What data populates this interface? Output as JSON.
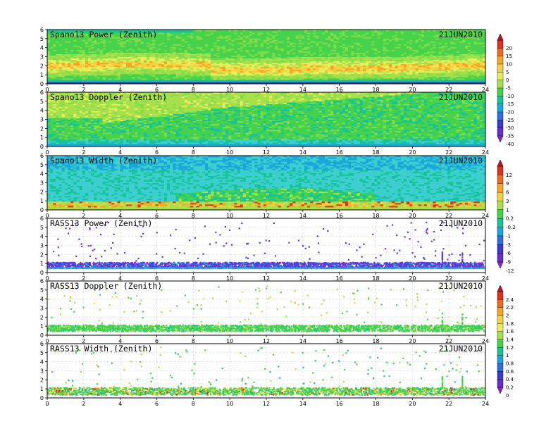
{
  "chart_data": [
    {
      "type": "heatmap",
      "title": "Spano13 Power (Zenith)",
      "date": "21JUN2010",
      "xlim": [
        0,
        24
      ],
      "ylim": [
        0,
        6
      ],
      "x_ticks": [
        "0",
        "2",
        "4",
        "6",
        "8",
        "10",
        "12",
        "14",
        "16",
        "18",
        "20",
        "22",
        "24"
      ],
      "y_ticks": [
        "0",
        "1",
        "2",
        "3",
        "4",
        "5",
        "6"
      ],
      "colorbar_group": 0,
      "pattern": "power",
      "profile": [
        {
          "x": 0,
          "level": 20,
          "mid": 2.0,
          "top": 5.6
        },
        {
          "x": 4,
          "level": 15,
          "mid": 2.0,
          "top": 5.7
        },
        {
          "x": 8,
          "level": 10,
          "mid": 1.8,
          "top": 5.8
        },
        {
          "x": 12,
          "level": 8,
          "mid": 1.6,
          "top": 5.9
        },
        {
          "x": 16,
          "level": 14,
          "mid": 2.0,
          "top": 5.9
        },
        {
          "x": 20,
          "level": 10,
          "mid": 1.8,
          "top": 5.9
        },
        {
          "x": 24,
          "level": 16,
          "mid": 2.1,
          "top": 5.9
        }
      ]
    },
    {
      "type": "heatmap",
      "title": "Spano13 Doppler (Zenith)",
      "date": "21JUN2010",
      "xlim": [
        0,
        24
      ],
      "ylim": [
        0,
        6
      ],
      "x_ticks": [
        "0",
        "2",
        "4",
        "6",
        "8",
        "10",
        "12",
        "14",
        "16",
        "18",
        "20",
        "22",
        "24"
      ],
      "y_ticks": [
        "0",
        "1",
        "2",
        "3",
        "4",
        "5",
        "6"
      ],
      "colorbar_group": 0,
      "pattern": "doppler"
    },
    {
      "type": "heatmap",
      "title": "Spano13 Width (Zenith)",
      "date": "21JUN2010",
      "xlim": [
        0,
        24
      ],
      "ylim": [
        0,
        6
      ],
      "x_ticks": [
        "0",
        "2",
        "4",
        "6",
        "8",
        "10",
        "12",
        "14",
        "16",
        "18",
        "20",
        "22",
        "24"
      ],
      "y_ticks": [
        "0",
        "1",
        "2",
        "3",
        "4",
        "5",
        "6"
      ],
      "colorbar_group": 1,
      "pattern": "width"
    },
    {
      "type": "scatter",
      "title": "RASS13 Power (Zenith)",
      "date": "21JUN2010",
      "xlim": [
        0,
        24
      ],
      "ylim": [
        0,
        6
      ],
      "x_ticks": [
        "0",
        "2",
        "4",
        "6",
        "8",
        "10",
        "12",
        "14",
        "16",
        "18",
        "20",
        "22",
        "24"
      ],
      "y_ticks": [
        "0",
        "1",
        "2",
        "3",
        "4",
        "5",
        "6"
      ],
      "colorbar_group": 1,
      "pattern": "rasspower",
      "dense_band_height_km": [
        0.5,
        1.2
      ]
    },
    {
      "type": "scatter",
      "title": "RASS13 Doppler (Zenith)",
      "date": "21JUN2010",
      "xlim": [
        0,
        24
      ],
      "ylim": [
        0,
        6
      ],
      "x_ticks": [
        "0",
        "2",
        "4",
        "6",
        "8",
        "10",
        "12",
        "14",
        "16",
        "18",
        "20",
        "22",
        "24"
      ],
      "y_ticks": [
        "0",
        "1",
        "2",
        "3",
        "4",
        "5",
        "6"
      ],
      "colorbar_group": 2,
      "pattern": "rassdoppler",
      "dense_band_height_km": [
        0.5,
        1.2
      ]
    },
    {
      "type": "scatter",
      "title": "RASS13 Width (Zenith)",
      "date": "21JUN2010",
      "xlim": [
        0,
        24
      ],
      "ylim": [
        0,
        6
      ],
      "x_ticks": [
        "0",
        "2",
        "4",
        "6",
        "8",
        "10",
        "12",
        "14",
        "16",
        "18",
        "20",
        "22",
        "24"
      ],
      "y_ticks": [
        "0",
        "1",
        "2",
        "3",
        "4",
        "5",
        "6"
      ],
      "colorbar_group": 2,
      "pattern": "rasswidth",
      "dense_band_height_km": [
        0.4,
        1.2
      ]
    }
  ],
  "colorbars": [
    {
      "labels": [
        "20",
        "15",
        "10",
        "5",
        "0",
        "-5",
        "-10",
        "-15",
        "-20",
        "-25",
        "-30",
        "-35",
        "-40"
      ],
      "colors": [
        "#c8102e",
        "#e0301e",
        "#f06a1c",
        "#f5a623",
        "#f5d142",
        "#e6ee5a",
        "#a7e04a",
        "#46d24a",
        "#18c39a",
        "#1ba7d9",
        "#2d6fe0",
        "#3a3ad2",
        "#6a2cc8",
        "#8e2bc8"
      ]
    },
    {
      "labels": [
        "12",
        "9",
        "6",
        "3",
        "1",
        "0.2",
        "-0.2",
        "-1",
        "-3",
        "-6",
        "-9",
        "-12"
      ],
      "colors": [
        "#c8102e",
        "#e0301e",
        "#f06a1c",
        "#f5a623",
        "#f5d142",
        "#a7e04a",
        "#46d24a",
        "#18c39a",
        "#1ba7d9",
        "#2d6fe0",
        "#3a3ad2",
        "#6a2cc8",
        "#8e2bc8"
      ]
    },
    {
      "labels": [
        "2.4",
        "2.2",
        "2",
        "1.8",
        "1.6",
        "1.4",
        "1.2",
        "1",
        "0.8",
        "0.6",
        "0.4",
        "0.2",
        "0"
      ],
      "colors": [
        "#c8102e",
        "#e0301e",
        "#f06a1c",
        "#f5a623",
        "#f5d142",
        "#e6ee5a",
        "#a7e04a",
        "#46d24a",
        "#18c39a",
        "#1ba7d9",
        "#2d6fe0",
        "#3a3ad2",
        "#6a2cc8",
        "#8e2bc8"
      ]
    }
  ]
}
